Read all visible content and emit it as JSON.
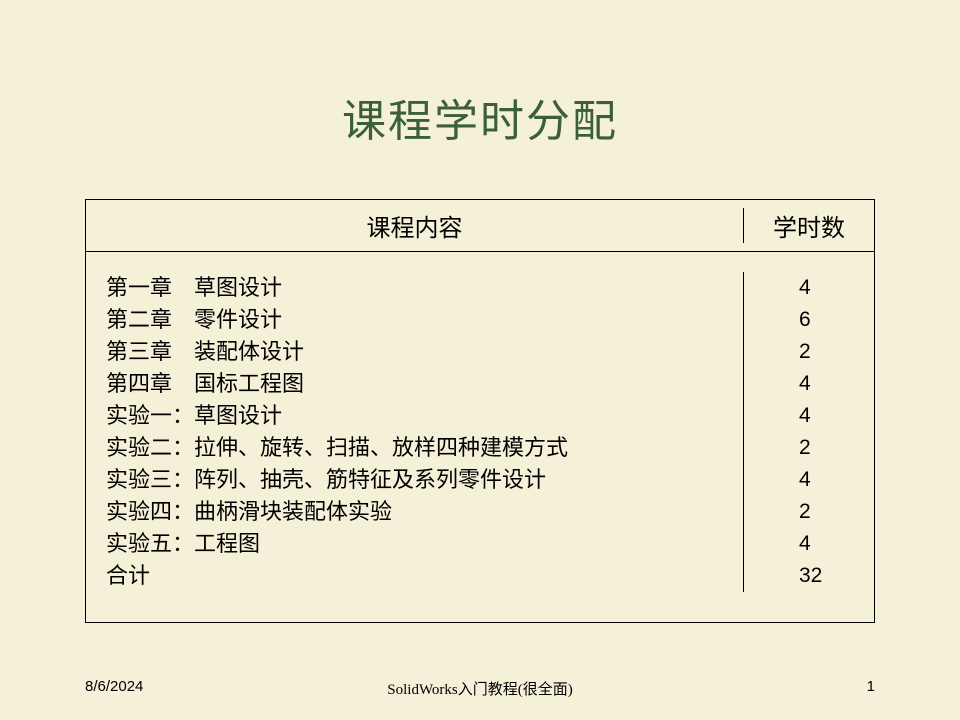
{
  "title": "课程学时分配",
  "table": {
    "header": {
      "content": "课程内容",
      "hours": "学时数"
    },
    "rows": [
      {
        "content": "第一章　草图设计",
        "hours": "4"
      },
      {
        "content": "第二章　零件设计",
        "hours": "6"
      },
      {
        "content": "第三章　装配体设计",
        "hours": "2"
      },
      {
        "content": "第四章　国标工程图",
        "hours": "4"
      },
      {
        "content": "实验一：草图设计",
        "hours": "4"
      },
      {
        "content": "实验二：拉伸、旋转、扫描、放样四种建模方式",
        "hours": "2"
      },
      {
        "content": "实验三：阵列、抽壳、筋特征及系列零件设计",
        "hours": "4"
      },
      {
        "content": "实验四：曲柄滑块装配体实验",
        "hours": "2"
      },
      {
        "content": "实验五：工程图",
        "hours": "4"
      },
      {
        "content": "合计",
        "hours": "32"
      }
    ]
  },
  "footer": {
    "date": "8/6/2024",
    "center": "SolidWorks入门教程(很全面)",
    "page": "1"
  },
  "colors": {
    "background": "#f5f0d8",
    "title": "#3a5f3a",
    "text": "#000000",
    "border": "#000000"
  }
}
